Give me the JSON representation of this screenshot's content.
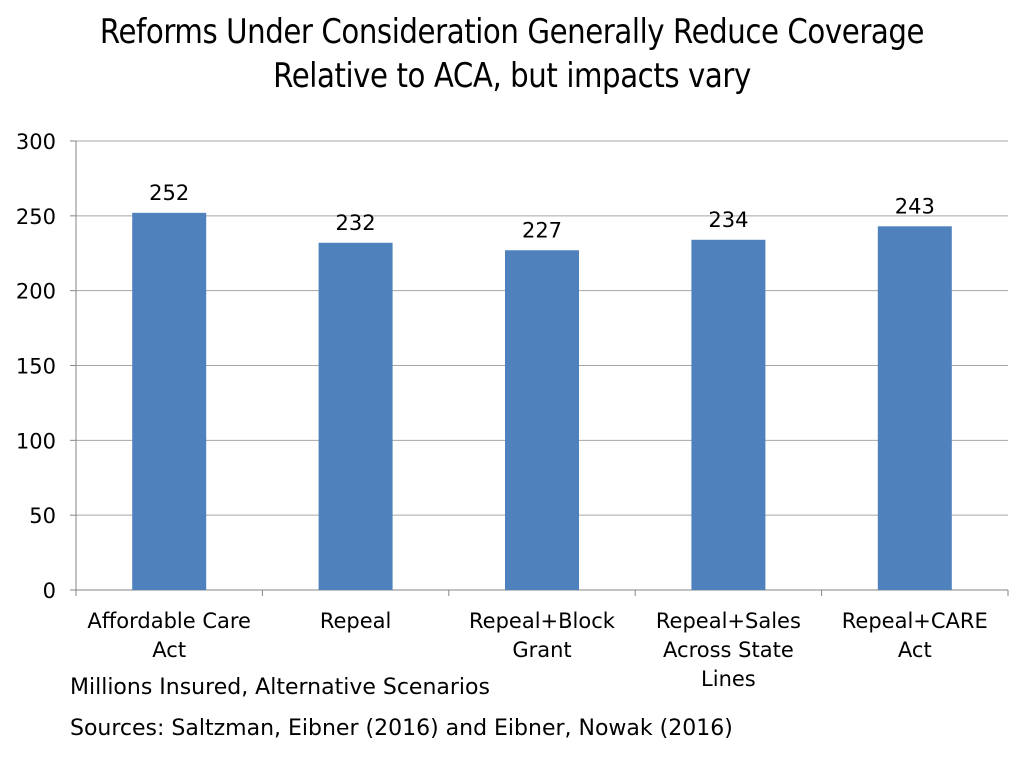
{
  "title": {
    "line1": "Reforms Under Consideration Generally Reduce Coverage",
    "line2": "Relative to ACA, but impacts vary"
  },
  "notes": {
    "units": "Millions Insured, Alternative Scenarios",
    "sources": "Sources: Saltzman, Eibner (2016) and Eibner, Nowak (2016)"
  },
  "colors": {
    "bar": "#4f81bd",
    "grid": "#a6a6a6",
    "axis": "#868686"
  },
  "chart_data": {
    "type": "bar",
    "categories": [
      [
        "Affordable Care",
        "Act"
      ],
      [
        "Repeal"
      ],
      [
        "Repeal+Block",
        "Grant"
      ],
      [
        "Repeal+Sales",
        "Across State",
        "Lines"
      ],
      [
        "Repeal+CARE",
        "Act"
      ]
    ],
    "values": [
      252,
      232,
      227,
      234,
      243
    ],
    "data_labels": [
      "252",
      "232",
      "227",
      "234",
      "243"
    ],
    "ylim": [
      0,
      300
    ],
    "yticks": [
      0,
      50,
      100,
      150,
      200,
      250,
      300
    ],
    "grid": true,
    "legend": "none"
  }
}
